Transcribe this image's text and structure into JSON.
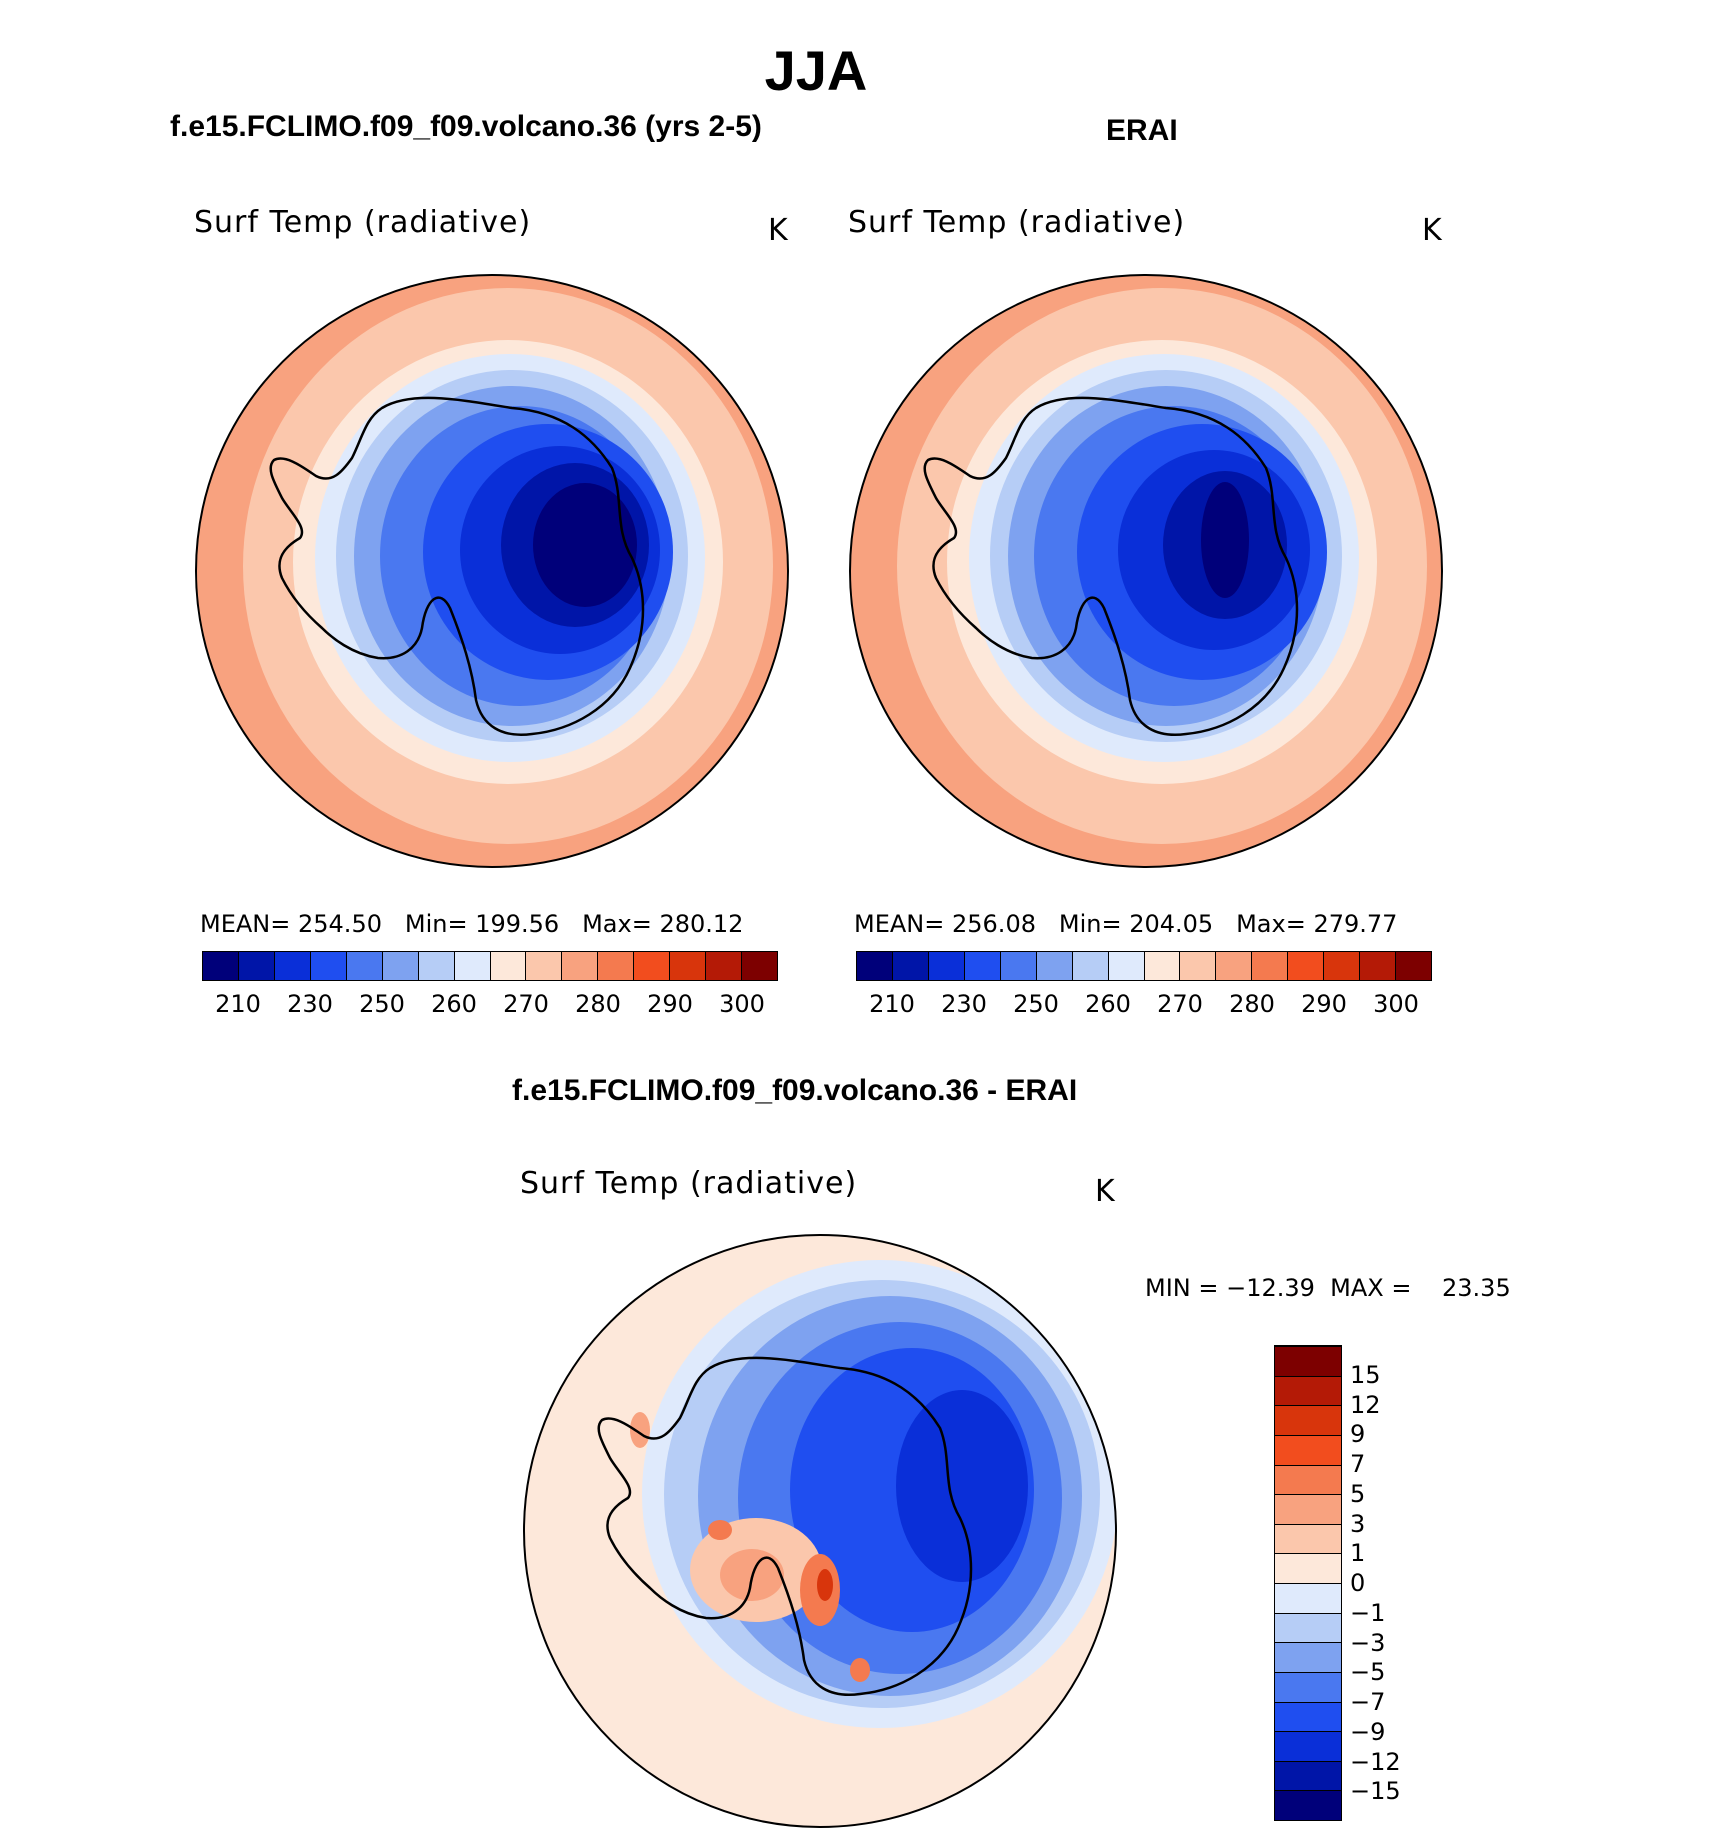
{
  "figure": {
    "season": "JJA",
    "panels": [
      {
        "title": "f.e15.FCLIMO.f09_f09.volcano.36 (yrs 2-5)",
        "variable": "Surf Temp (radiative)",
        "units": "K",
        "stats": {
          "mean_label": "MEAN=",
          "mean": "254.50",
          "min_label": "Min=",
          "min": "199.56",
          "max_label": "Max=",
          "max": "280.12"
        }
      },
      {
        "title": "ERAI",
        "variable": "Surf Temp (radiative)",
        "units": "K",
        "stats": {
          "mean_label": "MEAN=",
          "mean": "256.08",
          "min_label": "Min=",
          "min": "204.05",
          "max_label": "Max=",
          "max": "279.77"
        }
      }
    ],
    "difference": {
      "title": "f.e15.FCLIMO.f09_f09.volcano.36 - ERAI",
      "variable": "Surf Temp (radiative)",
      "units": "K",
      "min_max": "MIN = −12.39  MAX =    23.35"
    }
  },
  "colorbars": {
    "absolute": {
      "ticks": [
        "210",
        "230",
        "250",
        "260",
        "270",
        "280",
        "290",
        "300"
      ],
      "colors": [
        "#00007a",
        "#0015a8",
        "#0a2fd8",
        "#1f4ef0",
        "#4a78f0",
        "#7ea2f0",
        "#b6cdf6",
        "#dfeafc",
        "#fde8da",
        "#fbc7ac",
        "#f8a27f",
        "#f47a4f",
        "#f24d1e",
        "#d8350c",
        "#b41a06",
        "#7d0000"
      ]
    },
    "difference": {
      "ticks": [
        "15",
        "12",
        "9",
        "7",
        "5",
        "3",
        "1",
        "0",
        "−1",
        "−3",
        "−5",
        "−7",
        "−9",
        "−12",
        "−15"
      ],
      "colors": [
        "#00007a",
        "#0015a8",
        "#0a2fd8",
        "#1f4ef0",
        "#4a78f0",
        "#7ea2f0",
        "#b6cdf6",
        "#dfeafc",
        "#fde8da",
        "#fbc7ac",
        "#f8a27f",
        "#f47a4f",
        "#f24d1e",
        "#d8350c",
        "#b41a06",
        "#7d0000"
      ]
    }
  }
}
